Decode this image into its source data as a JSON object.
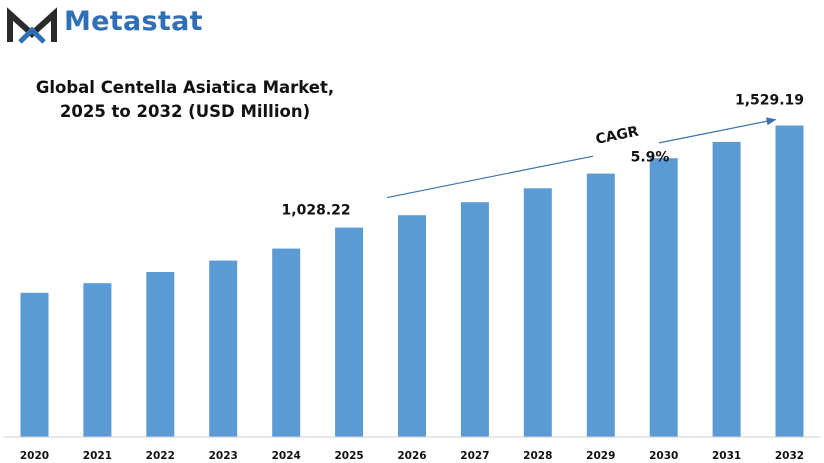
{
  "brand": {
    "name": "Metastat",
    "logo_icon": "metastat-logo-m-icon",
    "color": "#2f6fb5"
  },
  "chart_data": {
    "type": "bar",
    "title_line1": "Global Centella Asiatica Market,",
    "title_line2": "2025 to 2032 (USD Million)",
    "xlabel": "",
    "ylabel": "",
    "categories": [
      "2020",
      "2021",
      "2022",
      "2023",
      "2024",
      "2025",
      "2026",
      "2027",
      "2028",
      "2029",
      "2030",
      "2031",
      "2032"
    ],
    "values": [
      708,
      755,
      810,
      866,
      925,
      1028.22,
      1089,
      1153,
      1221,
      1293,
      1369,
      1449,
      1529.19
    ],
    "ylim": [
      0,
      1900
    ],
    "bar_color": "#5b9bd5",
    "data_labels": [
      {
        "category": "2025",
        "text": "1,028.22"
      },
      {
        "category": "2032",
        "text": "1,529.19"
      }
    ],
    "annotation": {
      "label": "CAGR",
      "value": "5.9%",
      "from": "2025",
      "to": "2032"
    },
    "grid": false,
    "legend": "none"
  }
}
